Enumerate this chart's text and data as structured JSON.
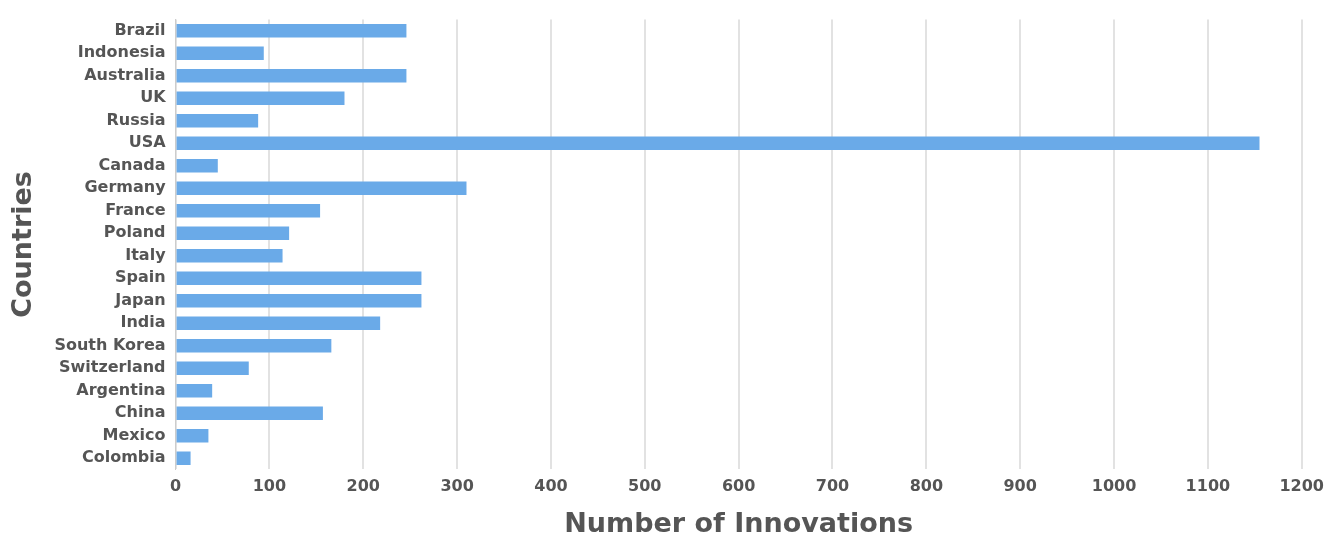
{
  "chart_data": {
    "type": "bar",
    "orientation": "horizontal",
    "xlabel": "Number of Innovations",
    "ylabel": "Countries",
    "categories": [
      "Brazil",
      "Indonesia",
      "Australia",
      "UK",
      "Russia",
      "USA",
      "Canada",
      "Germany",
      "France",
      "Poland",
      "Italy",
      "Spain",
      "Japan",
      "India",
      "South Korea",
      "Switzerland",
      "Argentina",
      "China",
      "Mexico",
      "Colombia"
    ],
    "values": [
      246,
      94,
      246,
      180,
      88,
      1155,
      45,
      310,
      154,
      121,
      114,
      262,
      262,
      218,
      166,
      78,
      39,
      157,
      35,
      16
    ],
    "color": "#6aaae8",
    "xlim": [
      0,
      1200
    ],
    "xticks": [
      0,
      100,
      200,
      300,
      400,
      500,
      600,
      700,
      800,
      900,
      1000,
      1100,
      1200
    ],
    "grid": "x"
  }
}
